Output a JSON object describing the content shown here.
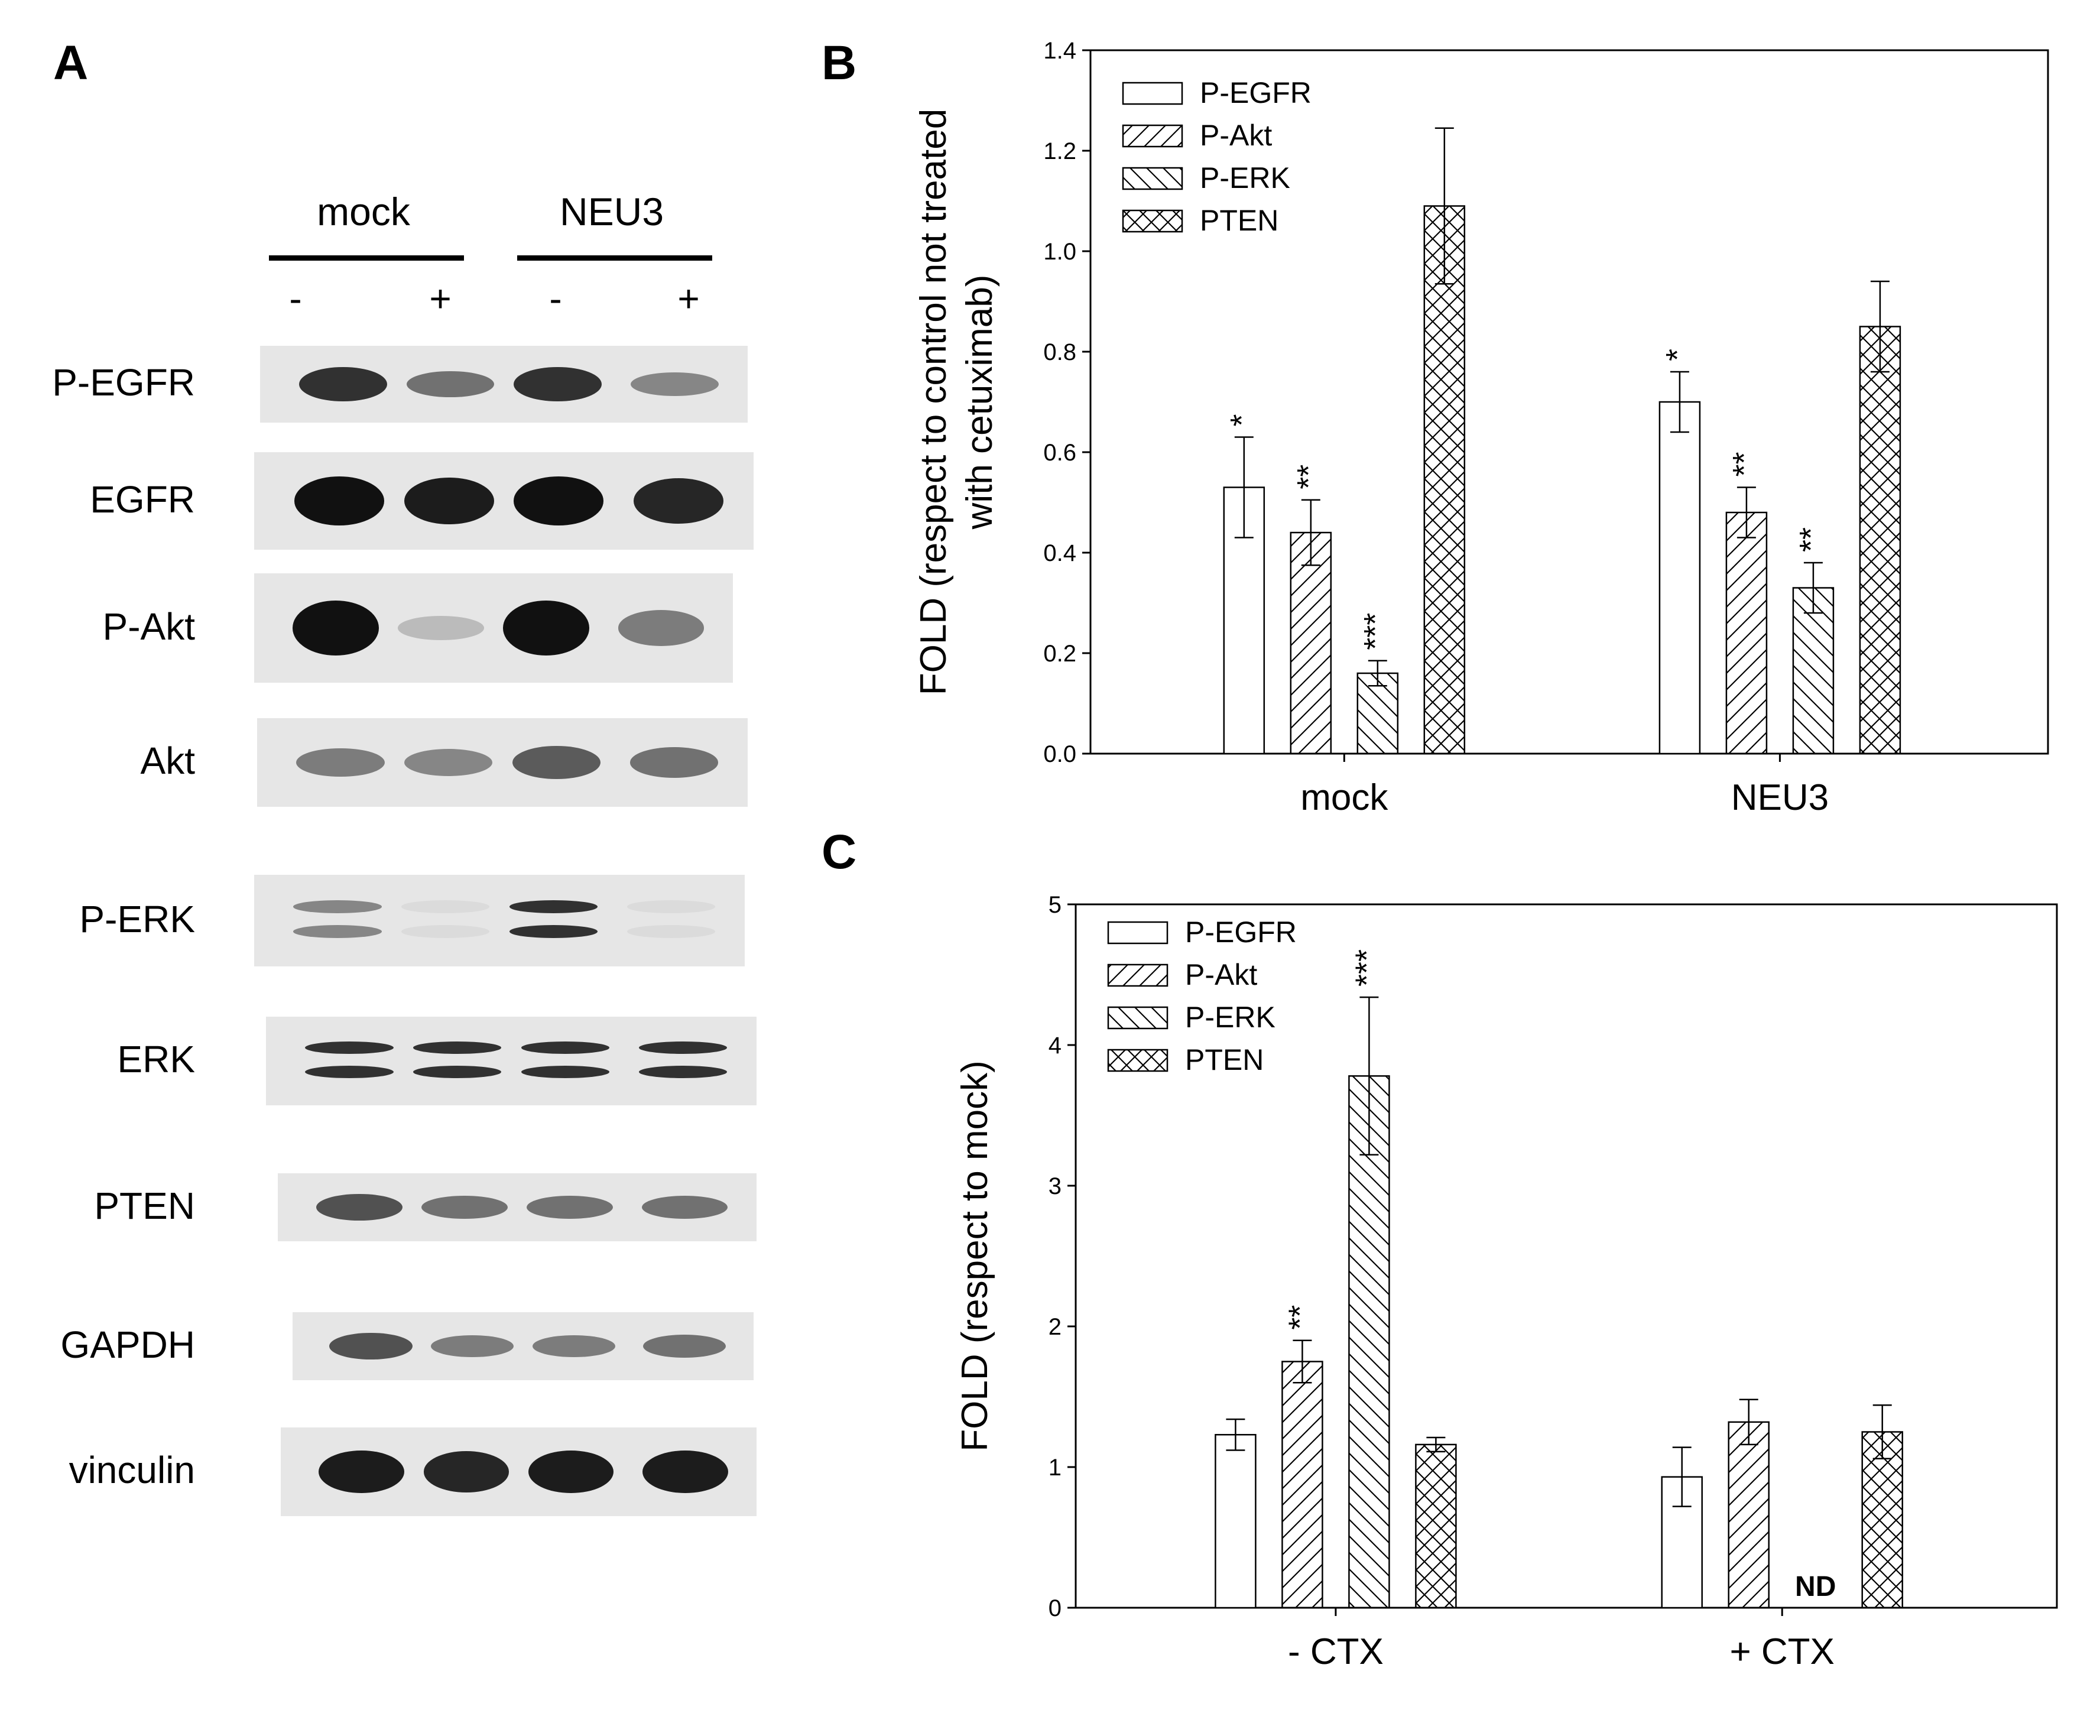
{
  "panel_a": {
    "letter": "A",
    "groups": [
      "mock",
      "NEU3"
    ],
    "signs": [
      "-",
      "+",
      "-",
      "+"
    ],
    "blots": [
      {
        "label": "P-EGFR",
        "intensity": [
          0.85,
          0.55,
          0.85,
          0.45
        ]
      },
      {
        "label": "EGFR",
        "intensity": [
          1.0,
          0.95,
          1.0,
          0.9
        ]
      },
      {
        "label": "P-Akt",
        "intensity": [
          1.0,
          0.2,
          1.0,
          0.5
        ]
      },
      {
        "label": "Akt",
        "intensity": [
          0.5,
          0.45,
          0.65,
          0.55
        ]
      },
      {
        "label": "P-ERK",
        "intensity": [
          0.45,
          0.05,
          0.85,
          0.03
        ]
      },
      {
        "label": "ERK",
        "intensity": [
          0.85,
          0.85,
          0.85,
          0.85
        ]
      },
      {
        "label": "PTEN",
        "intensity": [
          0.7,
          0.55,
          0.55,
          0.55
        ]
      },
      {
        "label": "GAPDH",
        "intensity": [
          0.7,
          0.5,
          0.5,
          0.55
        ]
      },
      {
        "label": "vinculin",
        "intensity": [
          0.95,
          0.9,
          0.95,
          0.95
        ]
      }
    ]
  },
  "chart_data": [
    {
      "panel": "B",
      "type": "bar",
      "ylabel_line1": "FOLD (respect to control not treated",
      "ylabel_line2": "with cetuximab)",
      "categories": [
        "mock",
        "NEU3"
      ],
      "ylim": [
        0,
        1.4
      ],
      "yticks": [
        "0.0",
        "0.2",
        "0.4",
        "0.6",
        "0.8",
        "1.0",
        "1.2",
        "1.4"
      ],
      "legend_position": "top-left",
      "series": [
        {
          "name": "P-EGFR",
          "pattern": "empty",
          "values": [
            0.53,
            0.7
          ],
          "errors": [
            0.1,
            0.06
          ],
          "sig": [
            "*",
            "*"
          ]
        },
        {
          "name": "P-Akt",
          "pattern": "fwd-hatch",
          "values": [
            0.44,
            0.48
          ],
          "errors": [
            0.065,
            0.05
          ],
          "sig": [
            "**",
            "**"
          ]
        },
        {
          "name": "P-ERK",
          "pattern": "back-hatch",
          "values": [
            0.16,
            0.33
          ],
          "errors": [
            0.025,
            0.05
          ],
          "sig": [
            "***",
            "**"
          ]
        },
        {
          "name": "PTEN",
          "pattern": "cross-hatch",
          "values": [
            1.09,
            0.85
          ],
          "errors": [
            0.155,
            0.09
          ],
          "sig": [
            "",
            ""
          ]
        }
      ]
    },
    {
      "panel": "C",
      "type": "bar",
      "ylabel_line1": "FOLD (respect to mock)",
      "categories": [
        "- CTX",
        "+ CTX"
      ],
      "ylim": [
        0,
        5
      ],
      "yticks": [
        "0",
        "1",
        "2",
        "3",
        "4",
        "5"
      ],
      "legend_position": "top-left",
      "nd_label": "ND",
      "series": [
        {
          "name": "P-EGFR",
          "pattern": "empty",
          "values": [
            1.23,
            0.93
          ],
          "errors": [
            0.11,
            0.21
          ],
          "sig": [
            "",
            ""
          ]
        },
        {
          "name": "P-Akt",
          "pattern": "fwd-hatch",
          "values": [
            1.75,
            1.32
          ],
          "errors": [
            0.15,
            0.16
          ],
          "sig": [
            "**",
            ""
          ]
        },
        {
          "name": "P-ERK",
          "pattern": "back-hatch",
          "values": [
            3.78,
            null
          ],
          "errors": [
            0.56,
            0
          ],
          "sig": [
            "***",
            ""
          ]
        },
        {
          "name": "PTEN",
          "pattern": "cross-hatch",
          "values": [
            1.16,
            1.25
          ],
          "errors": [
            0.05,
            0.19
          ],
          "sig": [
            "",
            ""
          ]
        }
      ]
    }
  ]
}
